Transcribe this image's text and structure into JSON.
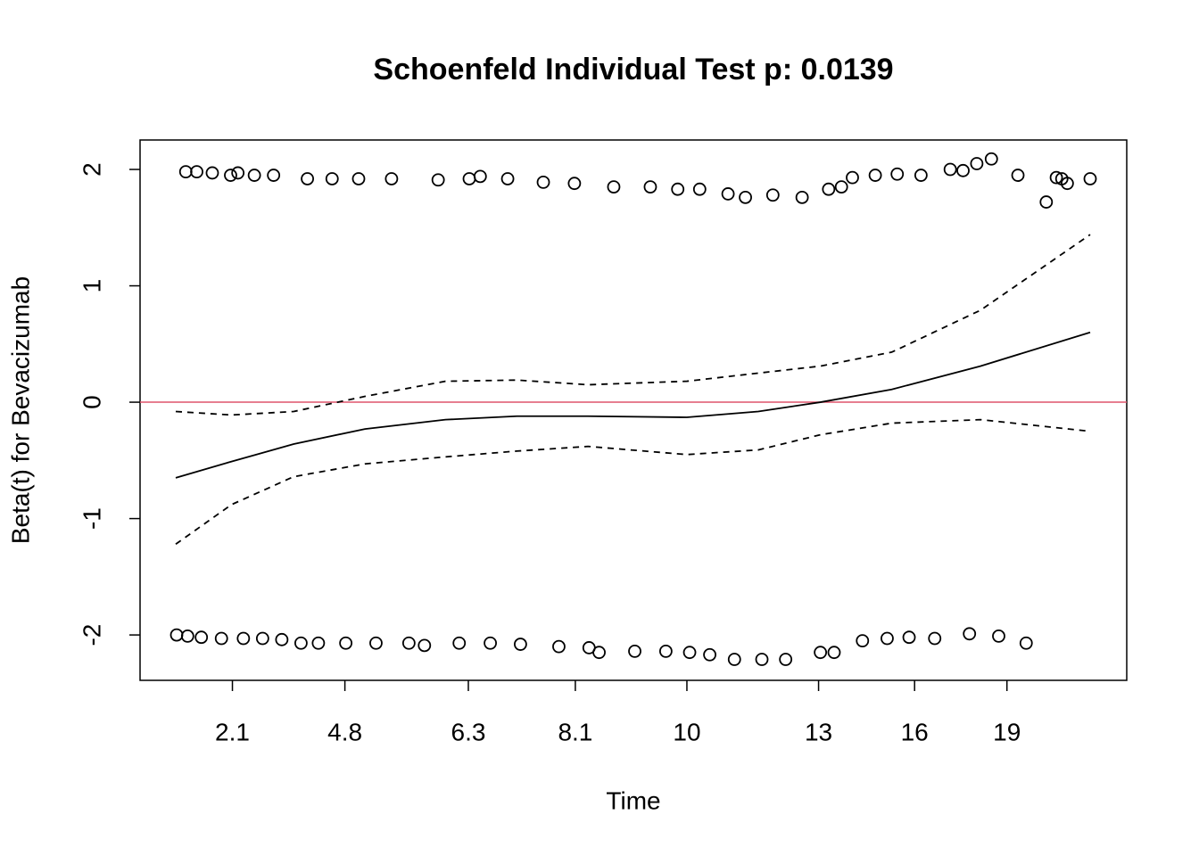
{
  "chart_data": {
    "type": "scatter",
    "title": "Schoenfeld Individual Test p: 0.0139",
    "xlabel": "Time",
    "ylabel": "Beta(t) for Bevacizumab",
    "xlim": [
      -0.039,
      1.04
    ],
    "ylim": [
      -2.39,
      2.253
    ],
    "xticks": [
      {
        "value": 0.062,
        "label": "2.1"
      },
      {
        "value": 0.185,
        "label": "4.8"
      },
      {
        "value": 0.32,
        "label": "6.3"
      },
      {
        "value": 0.437,
        "label": "8.1"
      },
      {
        "value": 0.559,
        "label": "10"
      },
      {
        "value": 0.703,
        "label": "13"
      },
      {
        "value": 0.808,
        "label": "16"
      },
      {
        "value": 0.909,
        "label": "19"
      }
    ],
    "yticks": [
      -2,
      -1,
      0,
      1,
      2
    ],
    "hline": 0,
    "hline_color": "#df536b",
    "color": "#000000",
    "points": {
      "x": [
        0.011,
        0.023,
        0.04,
        0.06,
        0.068,
        0.086,
        0.107,
        0.144,
        0.171,
        0.2,
        0.236,
        0.287,
        0.321,
        0.333,
        0.363,
        0.402,
        0.436,
        0.479,
        0.519,
        0.549,
        0.573,
        0.604,
        0.623,
        0.653,
        0.685,
        0.714,
        0.728,
        0.74,
        0.765,
        0.789,
        0.815,
        0.847,
        0.861,
        0.876,
        0.892,
        0.921,
        0.952,
        0.963,
        0.969,
        0.975,
        1.0,
        0.001,
        0.013,
        0.028,
        0.05,
        0.074,
        0.095,
        0.116,
        0.137,
        0.156,
        0.186,
        0.219,
        0.255,
        0.272,
        0.31,
        0.344,
        0.377,
        0.419,
        0.452,
        0.463,
        0.502,
        0.536,
        0.562,
        0.584,
        0.611,
        0.641,
        0.667,
        0.705,
        0.72,
        0.751,
        0.778,
        0.802,
        0.83,
        0.868,
        0.9,
        0.93
      ],
      "y": [
        1.98,
        1.98,
        1.97,
        1.95,
        1.97,
        1.95,
        1.95,
        1.92,
        1.92,
        1.92,
        1.92,
        1.91,
        1.92,
        1.94,
        1.92,
        1.89,
        1.88,
        1.85,
        1.85,
        1.83,
        1.83,
        1.79,
        1.76,
        1.78,
        1.76,
        1.83,
        1.85,
        1.93,
        1.95,
        1.96,
        1.95,
        2.0,
        1.99,
        2.05,
        2.09,
        1.95,
        1.72,
        1.93,
        1.92,
        1.88,
        1.92,
        -2.0,
        -2.01,
        -2.02,
        -2.03,
        -2.03,
        -2.03,
        -2.04,
        -2.07,
        -2.07,
        -2.07,
        -2.07,
        -2.07,
        -2.09,
        -2.07,
        -2.07,
        -2.08,
        -2.1,
        -2.11,
        -2.15,
        -2.14,
        -2.14,
        -2.15,
        -2.17,
        -2.21,
        -2.21,
        -2.21,
        -2.15,
        -2.15,
        -2.05,
        -2.03,
        -2.02,
        -2.03,
        -1.99,
        -2.01,
        -2.07
      ]
    },
    "curve_x": [
      0,
      0.061,
      0.129,
      0.207,
      0.295,
      0.373,
      0.451,
      0.559,
      0.637,
      0.705,
      0.783,
      0.88,
      1.0
    ],
    "curves": [
      {
        "dashed": false,
        "y": [
          -0.65,
          -0.51,
          -0.36,
          -0.23,
          -0.15,
          -0.12,
          -0.12,
          -0.13,
          -0.08,
          0,
          0.11,
          0.31,
          0.6
        ]
      },
      {
        "dashed": true,
        "y": [
          -0.08,
          -0.11,
          -0.08,
          0.05,
          0.18,
          0.19,
          0.15,
          0.18,
          0.25,
          0.31,
          0.43,
          0.79,
          1.44
        ]
      },
      {
        "dashed": true,
        "y": [
          -1.22,
          -0.88,
          -0.64,
          -0.53,
          -0.47,
          -0.42,
          -0.38,
          -0.45,
          -0.41,
          -0.28,
          -0.18,
          -0.15,
          -0.25
        ]
      }
    ]
  }
}
